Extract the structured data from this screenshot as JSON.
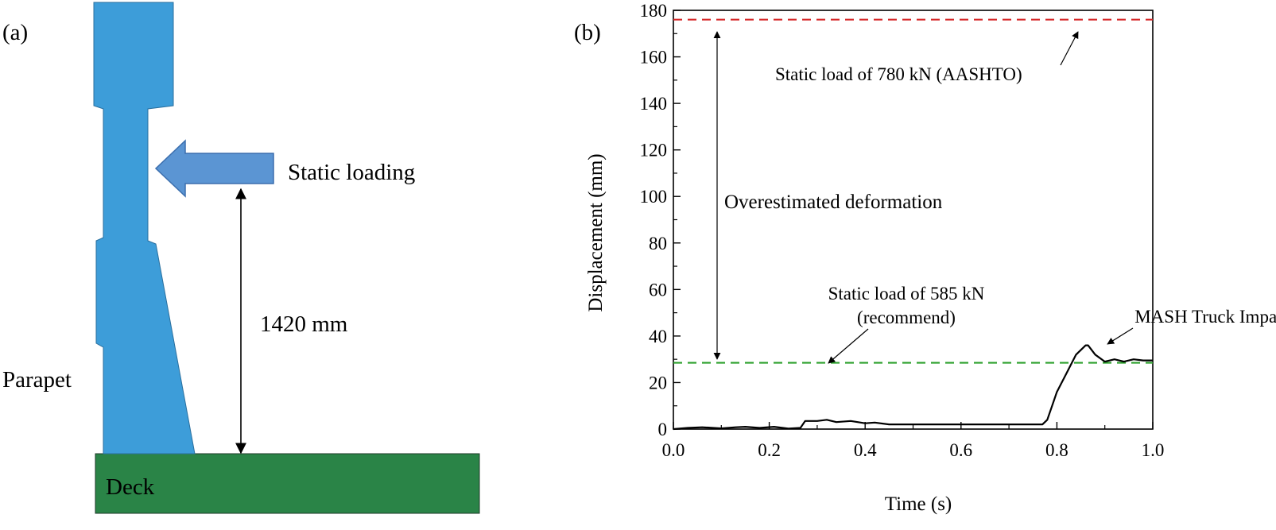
{
  "panel_a": {
    "label": "(a)",
    "load_label": "Static loading",
    "dimension_label": "1420 mm",
    "parapet_label": "Parapet",
    "deck_label": "Deck",
    "colors": {
      "parapet": "#3d9dd9",
      "arrow": "#5b95d3",
      "deck": "#2a8447"
    }
  },
  "panel_b": {
    "label": "(b)",
    "annotation_aashto": "Static load of 780 kN (AASHTO)",
    "annotation_over": "Overestimated deformation",
    "annotation_585_line1": "Static load of 585 kN",
    "annotation_585_line2": "(recommend)",
    "annotation_mash": "MASH Truck Impact"
  },
  "chart_data": {
    "type": "line",
    "xlabel": "Time (s)",
    "ylabel": "Displacement (mm)",
    "xlim": [
      0.0,
      1.0
    ],
    "ylim": [
      0,
      180
    ],
    "x_ticks": [
      "0.0",
      "0.2",
      "0.4",
      "0.6",
      "0.8",
      "1.0"
    ],
    "y_ticks": [
      "0",
      "20",
      "40",
      "60",
      "80",
      "100",
      "120",
      "140",
      "160",
      "180"
    ],
    "reference_lines": [
      {
        "label": "Static load of 780 kN (AASHTO)",
        "value": 176,
        "color": "#d62728",
        "style": "dashed"
      },
      {
        "label": "Static load of 585 kN (recommend)",
        "value": 28.5,
        "color": "#2ca02c",
        "style": "dashed"
      }
    ],
    "series": [
      {
        "name": "MASH Truck Impact",
        "color": "#000000",
        "x": [
          0,
          0.03,
          0.06,
          0.1,
          0.13,
          0.15,
          0.18,
          0.21,
          0.24,
          0.265,
          0.275,
          0.3,
          0.32,
          0.34,
          0.37,
          0.4,
          0.42,
          0.45,
          0.5,
          0.6,
          0.7,
          0.77,
          0.78,
          0.79,
          0.8,
          0.82,
          0.84,
          0.86,
          0.865,
          0.88,
          0.9,
          0.92,
          0.94,
          0.96,
          0.98,
          1.0
        ],
        "y": [
          0,
          0.5,
          0.8,
          0.3,
          0.8,
          1.0,
          0.5,
          1.0,
          0.2,
          0.5,
          3.5,
          3.5,
          4.0,
          3.0,
          3.5,
          2.5,
          2.8,
          2.0,
          2.0,
          2.0,
          2.0,
          2.0,
          4.0,
          10.0,
          16.0,
          24.0,
          32.0,
          36.0,
          36.0,
          32.0,
          29.0,
          30.0,
          29.0,
          30.0,
          29.5,
          29.5
        ]
      }
    ]
  }
}
